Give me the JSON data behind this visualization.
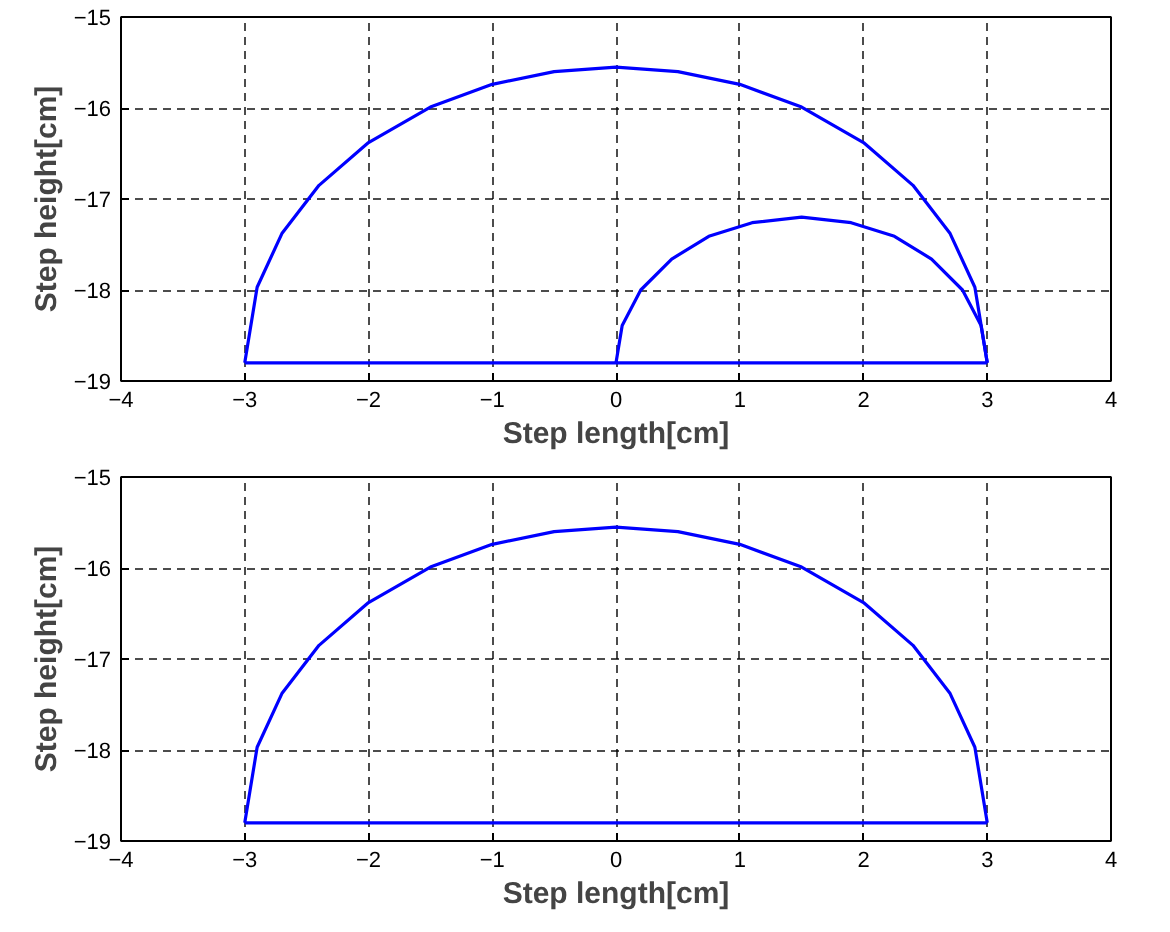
{
  "chart_data": [
    {
      "type": "line",
      "xlabel": "Step length[cm]",
      "ylabel": "Step height[cm]",
      "xlim": [
        -4,
        4
      ],
      "ylim": [
        -19,
        -15
      ],
      "xticks": [
        -4,
        -3,
        -2,
        -1,
        0,
        1,
        2,
        3,
        4
      ],
      "yticks": [
        -19,
        -18,
        -17,
        -16,
        -15
      ],
      "grid": true,
      "line_style": "solid",
      "series": [
        {
          "color": "#0000ff",
          "x": [
            -3,
            -2.9,
            -2.7,
            -2.4,
            -2,
            -1.5,
            -1,
            -0.5,
            0,
            0.5,
            1,
            1.5,
            2,
            2.4,
            2.7,
            2.9,
            3
          ],
          "values": [
            -18.8,
            -17.97,
            -17.38,
            -16.85,
            -16.38,
            -15.99,
            -15.74,
            -15.6,
            -15.55,
            -15.6,
            -15.74,
            -15.99,
            -16.38,
            -16.85,
            -17.38,
            -17.97,
            -18.8
          ]
        },
        {
          "color": "#0000ff",
          "x": [
            -3,
            3
          ],
          "values": [
            -18.8,
            -18.8
          ]
        },
        {
          "color": "#0000ff",
          "x": [
            0,
            0.05,
            0.2,
            0.45,
            0.75,
            1.1,
            1.5,
            1.9,
            2.25,
            2.55,
            2.8,
            2.95,
            3
          ],
          "values": [
            -18.8,
            -18.39,
            -18.0,
            -17.66,
            -17.41,
            -17.26,
            -17.2,
            -17.26,
            -17.41,
            -17.66,
            -18.0,
            -18.39,
            -18.8
          ]
        }
      ]
    },
    {
      "type": "line",
      "xlabel": "Step length[cm]",
      "ylabel": "Step height[cm]",
      "xlim": [
        -4,
        4
      ],
      "ylim": [
        -19,
        -15
      ],
      "xticks": [
        -4,
        -3,
        -2,
        -1,
        0,
        1,
        2,
        3,
        4
      ],
      "yticks": [
        -19,
        -18,
        -17,
        -16,
        -15
      ],
      "grid": true,
      "line_style": "solid",
      "series": [
        {
          "color": "#0000ff",
          "x": [
            -3,
            -2.9,
            -2.7,
            -2.4,
            -2,
            -1.5,
            -1,
            -0.5,
            0,
            0.5,
            1,
            1.5,
            2,
            2.4,
            2.7,
            2.9,
            3
          ],
          "values": [
            -18.8,
            -17.97,
            -17.38,
            -16.85,
            -16.38,
            -15.99,
            -15.74,
            -15.6,
            -15.55,
            -15.6,
            -15.74,
            -15.99,
            -16.38,
            -16.85,
            -17.38,
            -17.97,
            -18.8
          ]
        },
        {
          "color": "#0000ff",
          "x": [
            -3,
            3
          ],
          "values": [
            -18.8,
            -18.8
          ]
        }
      ]
    }
  ]
}
